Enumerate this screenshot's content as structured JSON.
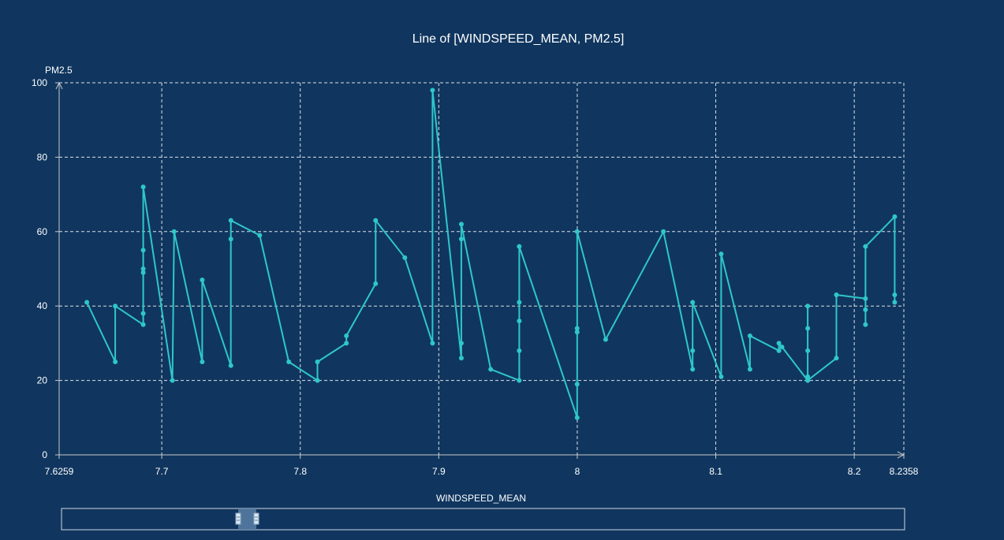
{
  "chart_data": {
    "type": "line",
    "title": "Line of [WINDSPEED_MEAN, PM2.5]",
    "xlabel": "WINDSPEED_MEAN",
    "ylabel": "PM2.5",
    "xlim": [
      7.6259,
      8.2358
    ],
    "ylim": [
      0,
      100
    ],
    "x_ticks": [
      7.6259,
      7.7,
      7.8,
      7.9,
      8,
      8.1,
      8.2,
      8.2358
    ],
    "x_tick_labels": [
      "7.6259",
      "7.7",
      "7.8",
      "7.9",
      "8",
      "8.1",
      "8.2",
      "8.2358"
    ],
    "y_ticks": [
      0,
      20,
      40,
      60,
      80,
      100
    ],
    "y_tick_labels": [
      "0",
      "20",
      "40",
      "60",
      "80",
      "100"
    ],
    "grid": true,
    "legend": "none",
    "series": [
      {
        "x": [
          7.6459,
          7.6664,
          7.6664,
          7.6866,
          7.6866,
          7.6866,
          7.6866,
          7.6866,
          7.6866,
          7.7077,
          7.7089,
          7.7292,
          7.7292,
          7.7499,
          7.7499,
          7.7499,
          7.7707,
          7.7917,
          7.8124,
          7.8124,
          7.8333,
          7.8333,
          7.8544,
          7.8544,
          7.8755,
          7.8955,
          7.8955,
          7.9163,
          7.9163,
          7.9163,
          7.9163,
          7.9375,
          7.9581,
          7.9581,
          7.9581,
          7.9581,
          7.9581,
          7.9999,
          7.9999,
          7.9999,
          7.9999,
          7.9999,
          8.0205,
          8.0622,
          8.0833,
          8.0833,
          8.0833,
          8.1039,
          8.1039,
          8.1247,
          8.1247,
          8.1456,
          8.1456,
          8.1478,
          8.1664,
          8.1664,
          8.1664,
          8.1664,
          8.1664,
          8.1664,
          8.1871,
          8.1871,
          8.2081,
          8.2081,
          8.2081,
          8.2081,
          8.2292,
          8.2292,
          8.2292
        ],
        "y": [
          41,
          25,
          40,
          35,
          38,
          49,
          50,
          55,
          72,
          20,
          60,
          25,
          47,
          24,
          58,
          63,
          59,
          25,
          20,
          25,
          30,
          32,
          46,
          63,
          53,
          30,
          98,
          26,
          30,
          58,
          62,
          23,
          20,
          28,
          36,
          41,
          56,
          10,
          19,
          33,
          34,
          60,
          31,
          60,
          23,
          28,
          41,
          21,
          54,
          23,
          32,
          28,
          30,
          29,
          20,
          21,
          28,
          34,
          40,
          20,
          26,
          43,
          42,
          35,
          39,
          56,
          64,
          43,
          41
        ]
      }
    ],
    "colors": {
      "background": "#10365f",
      "line": "#2fc7c9",
      "grid": "#ffffff",
      "slider_fill": "#5b7fa6"
    }
  }
}
